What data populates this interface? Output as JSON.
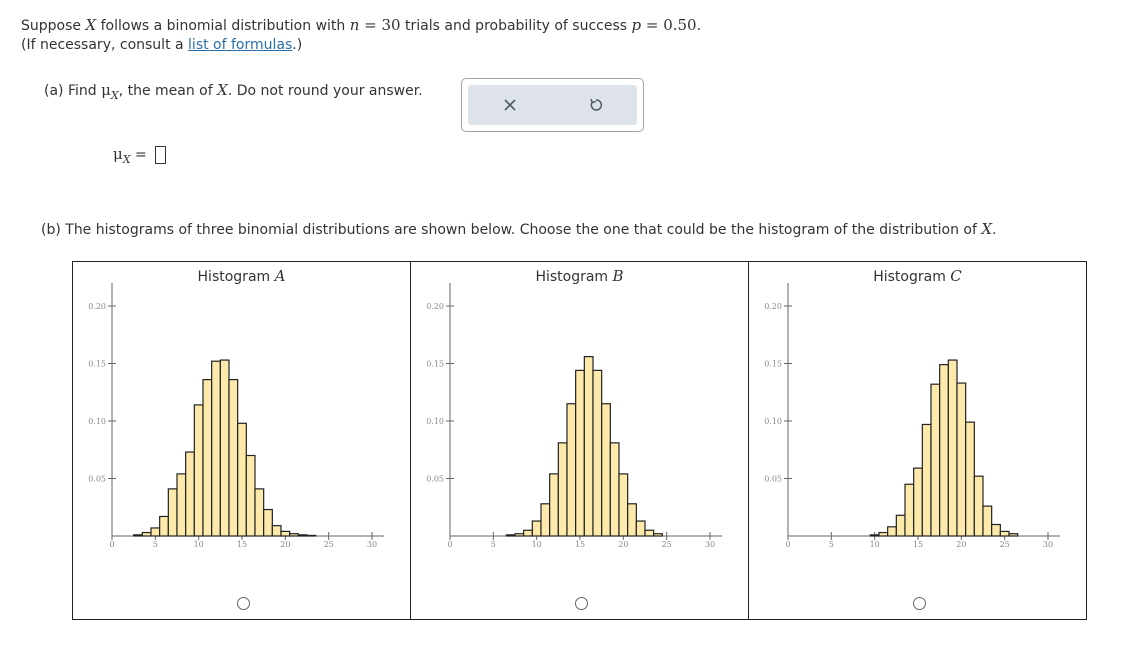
{
  "question": {
    "intro_1": "Suppose ",
    "var_X": "X",
    "intro_2": " follows a binomial distribution with ",
    "n_sym": "n",
    "n_eq": " = 30",
    "intro_3": " trials and probability of success ",
    "p_sym": "p",
    "p_eq": " = 0.50",
    "intro_end": ".",
    "formula_pre": "(If necessary, consult a ",
    "formula_link": "list of formulas",
    "formula_post": ".)"
  },
  "part_a": {
    "label_pre": "(a) Find ",
    "mu": "μ",
    "sub": "X",
    "label_mid": ", the mean of ",
    "var": "X",
    "label_post": ". Do not round your answer.",
    "answer_label_mu": "μ",
    "answer_label_sub": "X",
    "answer_eq": " = ",
    "answer_value": ""
  },
  "toolbox": {
    "clear_icon": "close-icon",
    "reset_icon": "undo-icon",
    "color_clear": "#4a5a66",
    "color_reset": "#4a5a66"
  },
  "part_b": {
    "label_pre": "(b) The histograms of three binomial distributions are shown below. Choose the one that could be the histogram of the distribution of ",
    "var": "X",
    "label_post": "."
  },
  "chart_data": [
    {
      "type": "bar",
      "title": "Histogram A",
      "title_word": "Histogram ",
      "title_letter": "A",
      "x": [
        3,
        4,
        5,
        6,
        7,
        8,
        9,
        10,
        11,
        12,
        13,
        14,
        15,
        16,
        17,
        18,
        19,
        20,
        21,
        22,
        23
      ],
      "values": [
        0.001,
        0.003,
        0.007,
        0.017,
        0.041,
        0.054,
        0.073,
        0.114,
        0.136,
        0.152,
        0.153,
        0.136,
        0.098,
        0.07,
        0.041,
        0.023,
        0.009,
        0.004,
        0.002,
        0.001,
        0.0005
      ],
      "xlim": [
        0,
        30
      ],
      "ylim": [
        0,
        0.22
      ],
      "xticks": [
        "0",
        "5",
        "10",
        "15",
        "20",
        "25",
        "30"
      ],
      "yticks": [
        "0.05",
        "0.10",
        "0.15",
        "0.20"
      ],
      "fill": "#fde9a9",
      "selected": false
    },
    {
      "type": "bar",
      "title": "Histogram B",
      "title_word": "Histogram ",
      "title_letter": "B",
      "x": [
        7,
        8,
        9,
        10,
        11,
        12,
        13,
        14,
        15,
        16,
        17,
        18,
        19,
        20,
        21,
        22,
        23,
        24
      ],
      "values": [
        0.001,
        0.002,
        0.005,
        0.013,
        0.028,
        0.054,
        0.081,
        0.115,
        0.144,
        0.156,
        0.144,
        0.115,
        0.081,
        0.054,
        0.028,
        0.013,
        0.005,
        0.002
      ],
      "xlim": [
        0,
        30
      ],
      "ylim": [
        0,
        0.22
      ],
      "xticks": [
        "0",
        "5",
        "10",
        "15",
        "20",
        "25",
        "30"
      ],
      "yticks": [
        "0.05",
        "0.10",
        "0.15",
        "0.20"
      ],
      "fill": "#fde9a9",
      "selected": false
    },
    {
      "type": "bar",
      "title": "Histogram C",
      "title_word": "Histogram ",
      "title_letter": "C",
      "x": [
        10,
        11,
        12,
        13,
        14,
        15,
        16,
        17,
        18,
        19,
        20,
        21,
        22,
        23,
        24,
        25,
        26
      ],
      "values": [
        0.001,
        0.003,
        0.008,
        0.018,
        0.045,
        0.059,
        0.097,
        0.132,
        0.149,
        0.153,
        0.133,
        0.099,
        0.052,
        0.026,
        0.01,
        0.004,
        0.002
      ],
      "xlim": [
        0,
        30
      ],
      "ylim": [
        0,
        0.22
      ],
      "xticks": [
        "0",
        "5",
        "10",
        "15",
        "20",
        "25",
        "30"
      ],
      "yticks": [
        "0.05",
        "0.10",
        "0.15",
        "0.20"
      ],
      "fill": "#fde9a9",
      "selected": false
    }
  ]
}
